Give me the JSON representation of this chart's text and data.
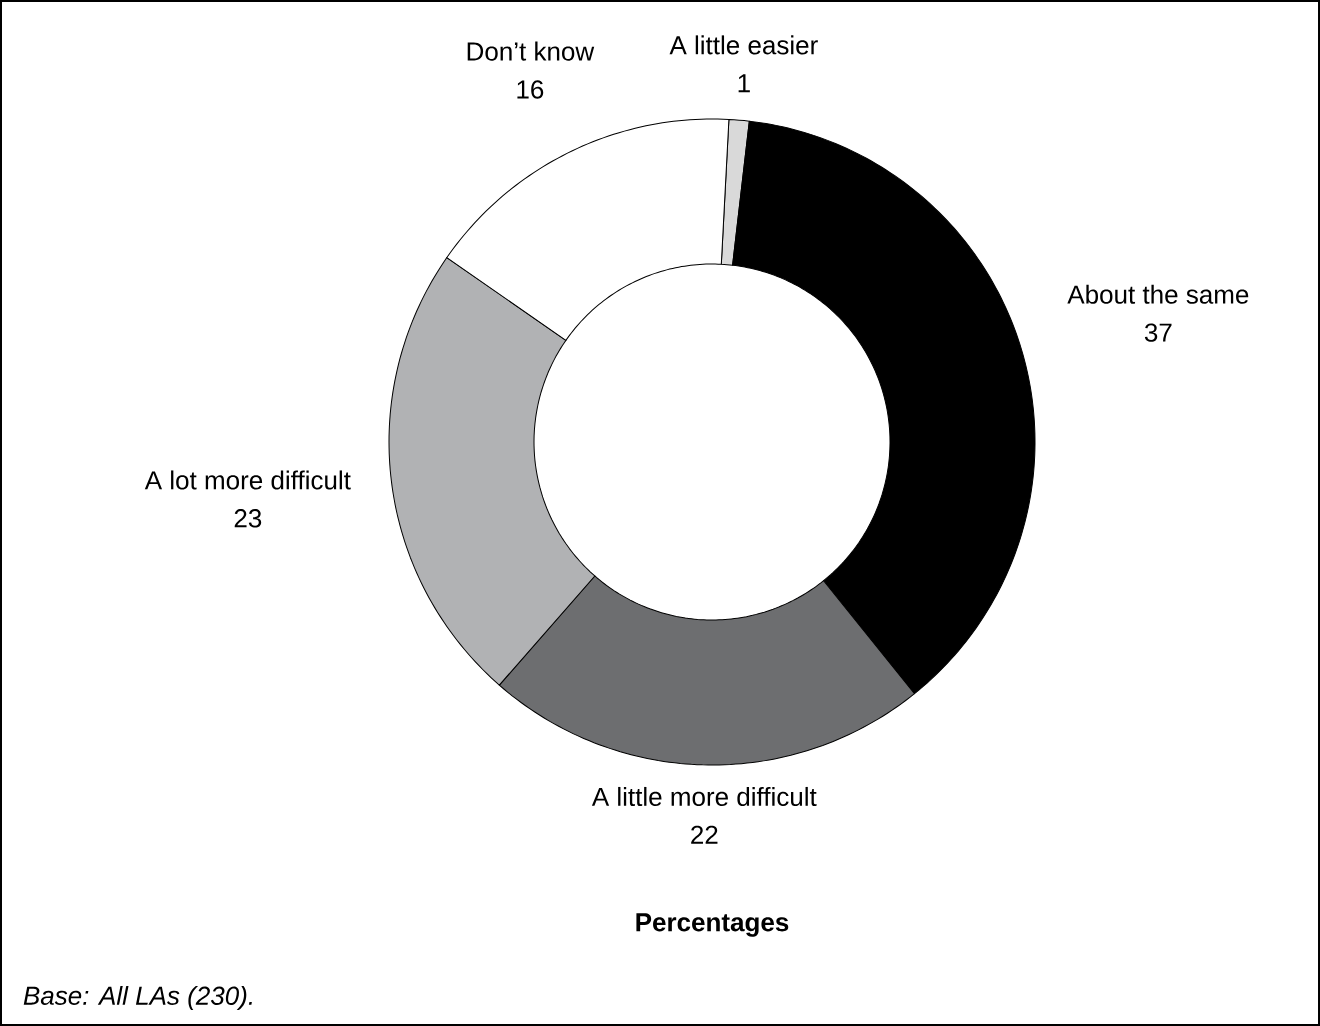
{
  "chart_data": {
    "type": "donut",
    "categories": [
      "A little easier",
      "About the same",
      "A little more difficult",
      "A lot more difficult",
      "Don’t know"
    ],
    "values": [
      1,
      37,
      22,
      23,
      16
    ],
    "colors": [
      "#d9d9d9",
      "#000000",
      "#6d6e70",
      "#b1b2b4",
      "#ffffff"
    ],
    "data_labels": true,
    "xlabel": "Percentages",
    "annotations": [
      "Base: All LAs (230)."
    ]
  }
}
